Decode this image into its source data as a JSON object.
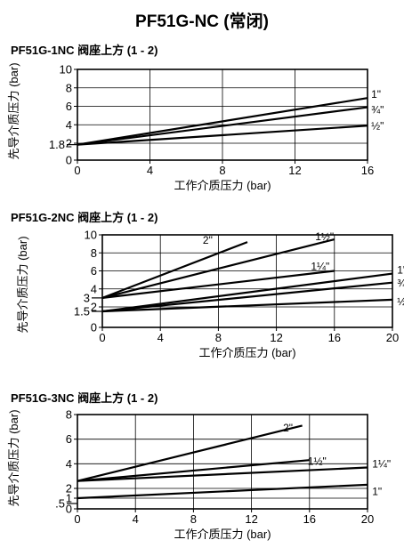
{
  "title": "PF51G-NC (常闭)",
  "chart_data": [
    {
      "type": "line",
      "subtitle": "PF51G-1NC 阀座上方 (1 - 2)",
      "xlabel": "工作介质压力 (bar)",
      "ylabel": "先导介质压力 (bar)",
      "xlim": [
        0,
        16
      ],
      "ylim": [
        0,
        10
      ],
      "xticks": [
        "0",
        "4",
        "8",
        "12",
        "16"
      ],
      "yticks": [
        "0",
        "2",
        "4",
        "6",
        "8",
        "10"
      ],
      "extra_yticks": [
        "1.8"
      ],
      "grid": true,
      "series": [
        {
          "name": "1\"",
          "x": [
            0,
            16
          ],
          "y": [
            1.8,
            6.9
          ]
        },
        {
          "name": "¾\"",
          "x": [
            0,
            16
          ],
          "y": [
            1.8,
            5.9
          ]
        },
        {
          "name": "½\"",
          "x": [
            0,
            16
          ],
          "y": [
            1.8,
            3.9
          ]
        }
      ]
    },
    {
      "type": "line",
      "subtitle": "PF51G-2NC 阀座上方 (1 - 2)",
      "xlabel": "工作介质压力 (bar)",
      "ylabel": "先导介质压力 (bar)",
      "xlim": [
        0,
        20
      ],
      "ylim": [
        0,
        10
      ],
      "xticks": [
        "0",
        "4",
        "8",
        "12",
        "16",
        "20"
      ],
      "yticks": [
        "0",
        "2",
        "4",
        "6",
        "8",
        "10"
      ],
      "extra_yticks": [
        "1.5",
        "3"
      ],
      "grid": true,
      "series": [
        {
          "name": "2\"",
          "x": [
            0,
            10
          ],
          "y": [
            3,
            9.2
          ]
        },
        {
          "name": "1½\"",
          "x": [
            0,
            16
          ],
          "y": [
            3,
            9.5
          ]
        },
        {
          "name": "1¼\"",
          "x": [
            0,
            16
          ],
          "y": [
            3,
            6
          ]
        },
        {
          "name": "1\"",
          "x": [
            0,
            20
          ],
          "y": [
            1.5,
            5.7
          ]
        },
        {
          "name": "¾\"",
          "x": [
            0,
            20
          ],
          "y": [
            1.5,
            4.7
          ]
        },
        {
          "name": "½\"",
          "x": [
            0,
            20
          ],
          "y": [
            1.5,
            2.8
          ]
        }
      ]
    },
    {
      "type": "line",
      "subtitle": "PF51G-3NC 阀座上方 (1 - 2)",
      "xlabel": "工作介质压力 (bar)",
      "ylabel": "先导介质压力 (bar)",
      "xlim": [
        0,
        20
      ],
      "ylim": [
        0,
        8
      ],
      "xticks": [
        "0",
        "4",
        "8",
        "12",
        "16",
        "20"
      ],
      "yticks": [
        "0",
        "1",
        "2",
        "4",
        "6",
        "8"
      ],
      "extra_yticks": [
        ".5"
      ],
      "grid": true,
      "series": [
        {
          "name": "2\"",
          "x": [
            0,
            15.5
          ],
          "y": [
            2.6,
            7.1
          ]
        },
        {
          "name": "1½\"",
          "x": [
            0,
            16
          ],
          "y": [
            2.6,
            4.3
          ]
        },
        {
          "name": "1¼\"",
          "x": [
            0,
            20
          ],
          "y": [
            2.6,
            3.7
          ]
        },
        {
          "name": "1\"",
          "x": [
            0,
            20
          ],
          "y": [
            1,
            2.3
          ]
        }
      ]
    }
  ]
}
